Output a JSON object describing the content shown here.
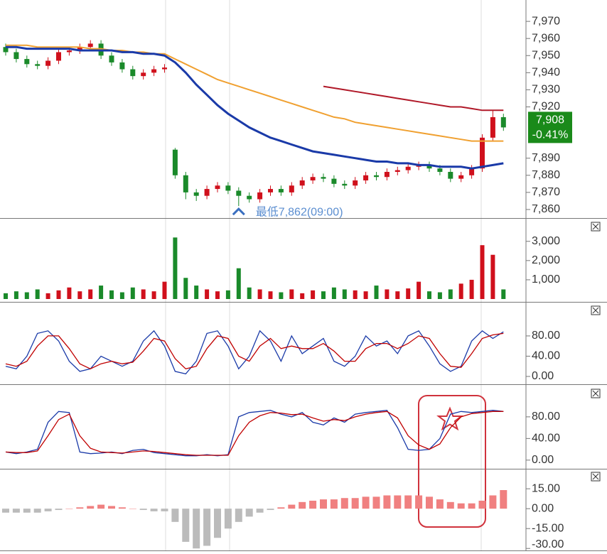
{
  "chart_data": [
    {
      "type": "candlestick",
      "open": [
        7955,
        7952,
        7948,
        7945,
        7944,
        7947,
        7952,
        7953,
        7955,
        7957,
        7950,
        7946,
        7942,
        7938,
        7940,
        7942,
        7895,
        7880,
        7870,
        7868,
        7872,
        7874,
        7871,
        7868,
        7866,
        7870,
        7872,
        7870,
        7874,
        7877,
        7879,
        7878,
        7875,
        7874,
        7877,
        7880,
        7879,
        7882,
        7883,
        7885,
        7886,
        7884,
        7882,
        7878,
        7880,
        7884,
        7902,
        7914
      ],
      "high": [
        7957,
        7954,
        7950,
        7947,
        7949,
        7954,
        7955,
        7957,
        7959,
        7959,
        7952,
        7948,
        7944,
        7942,
        7944,
        7945,
        7896,
        7882,
        7872,
        7874,
        7876,
        7876,
        7873,
        7870,
        7872,
        7874,
        7874,
        7876,
        7879,
        7881,
        7881,
        7880,
        7877,
        7879,
        7882,
        7882,
        7884,
        7885,
        7887,
        7888,
        7888,
        7886,
        7884,
        7882,
        7886,
        7904,
        7918,
        7916
      ],
      "low": [
        7950,
        7946,
        7943,
        7942,
        7942,
        7945,
        7950,
        7951,
        7953,
        7948,
        7944,
        7940,
        7936,
        7936,
        7938,
        7940,
        7878,
        7866,
        7865,
        7866,
        7870,
        7869,
        7862,
        7864,
        7864,
        7868,
        7868,
        7868,
        7872,
        7875,
        7876,
        7873,
        7872,
        7872,
        7875,
        7877,
        7877,
        7880,
        7881,
        7883,
        7882,
        7880,
        7876,
        7876,
        7878,
        7882,
        7900,
        7906
      ],
      "close": [
        7952,
        7948,
        7945,
        7944,
        7947,
        7952,
        7953,
        7955,
        7957,
        7950,
        7946,
        7942,
        7938,
        7940,
        7942,
        7943,
        7880,
        7870,
        7868,
        7872,
        7874,
        7871,
        7868,
        7866,
        7870,
        7872,
        7870,
        7874,
        7877,
        7879,
        7878,
        7875,
        7874,
        7877,
        7880,
        7879,
        7882,
        7883,
        7885,
        7886,
        7884,
        7882,
        7878,
        7880,
        7884,
        7902,
        7914,
        7908
      ],
      "up_color": "#d0101c",
      "down_color": "#1a8a2a",
      "series": [
        {
          "color": "#f0a030",
          "values": [
            7956,
            7956,
            7956,
            7955,
            7955,
            7955,
            7955,
            7955,
            7954,
            7954,
            7953,
            7953,
            7952,
            7952,
            7951,
            7951,
            7948,
            7945,
            7942,
            7939,
            7936,
            7934,
            7932,
            7930,
            7928,
            7926,
            7924,
            7922,
            7920,
            7918,
            7916,
            7914,
            7913,
            7911,
            7910,
            7909,
            7908,
            7907,
            7906,
            7905,
            7904,
            7903,
            7902,
            7901,
            7900,
            7900,
            7900,
            7900
          ]
        },
        {
          "color": "#1a3aa8",
          "values": [
            7955,
            7955,
            7954,
            7954,
            7954,
            7954,
            7954,
            7953,
            7953,
            7953,
            7953,
            7952,
            7952,
            7951,
            7951,
            7950,
            7946,
            7940,
            7933,
            7927,
            7921,
            7916,
            7912,
            7908,
            7905,
            7902,
            7900,
            7898,
            7896,
            7894,
            7893,
            7892,
            7891,
            7890,
            7889,
            7888,
            7888,
            7887,
            7887,
            7886,
            7886,
            7885,
            7885,
            7885,
            7884,
            7885,
            7886,
            7887
          ]
        },
        {
          "color": "#b01828",
          "values": [
            null,
            null,
            null,
            null,
            null,
            null,
            null,
            null,
            null,
            null,
            null,
            null,
            null,
            null,
            null,
            null,
            null,
            null,
            null,
            null,
            null,
            null,
            null,
            null,
            null,
            null,
            null,
            null,
            null,
            null,
            7932,
            7931,
            7930,
            7929,
            7928,
            7927,
            7926,
            7925,
            7924,
            7923,
            7922,
            7921,
            7920,
            7920,
            7919,
            7918,
            7918,
            7918
          ]
        }
      ],
      "ylim": [
        7855,
        7982.5
      ],
      "yticks": [
        {
          "value": 7970,
          "label": "7,970"
        },
        {
          "value": 7960,
          "label": "7,960"
        },
        {
          "value": 7950,
          "label": "7,950"
        },
        {
          "value": 7940,
          "label": "7,940"
        },
        {
          "value": 7930,
          "label": "7,930"
        },
        {
          "value": 7920,
          "label": "7,920"
        },
        {
          "value": 7890,
          "label": "7,890"
        },
        {
          "value": 7880,
          "label": "7,880"
        },
        {
          "value": 7870,
          "label": "7,870"
        },
        {
          "value": 7860,
          "label": "7,860"
        }
      ],
      "low_annotation": "最低7,862(09:00)",
      "low_index": 22,
      "last_price_label": "7,908",
      "change_label": "-0.41%",
      "tag_color": "#1a8a1a"
    },
    {
      "type": "bar",
      "values": [
        300,
        400,
        350,
        500,
        300,
        450,
        600,
        400,
        500,
        700,
        450,
        350,
        600,
        500,
        400,
        900,
        3200,
        1100,
        700,
        500,
        400,
        450,
        1600,
        600,
        500,
        400,
        350,
        500,
        300,
        450,
        400,
        600,
        500,
        450,
        400,
        700,
        500,
        400,
        550,
        900,
        400,
        350,
        500,
        800,
        1000,
        2800,
        2300,
        500
      ],
      "ylim": [
        0,
        4100
      ],
      "yticks": [
        {
          "value": 1000,
          "label": "1,000"
        },
        {
          "value": 2000,
          "label": "2,000"
        },
        {
          "value": 3000,
          "label": "3,000"
        }
      ]
    },
    {
      "type": "line",
      "series": [
        {
          "color": "#1a3aa8",
          "values": [
            20,
            15,
            40,
            85,
            90,
            70,
            30,
            10,
            15,
            40,
            30,
            20,
            30,
            70,
            90,
            60,
            10,
            5,
            30,
            85,
            90,
            60,
            15,
            40,
            90,
            70,
            30,
            80,
            45,
            60,
            75,
            30,
            20,
            40,
            80,
            60,
            70,
            45,
            80,
            90,
            60,
            25,
            10,
            20,
            70,
            90,
            75,
            88
          ]
        },
        {
          "color": "#c00000",
          "values": [
            25,
            20,
            30,
            60,
            80,
            80,
            55,
            25,
            15,
            25,
            30,
            25,
            28,
            50,
            75,
            70,
            35,
            15,
            20,
            55,
            80,
            75,
            40,
            30,
            60,
            75,
            55,
            60,
            55,
            55,
            65,
            50,
            30,
            30,
            55,
            65,
            65,
            55,
            65,
            80,
            75,
            45,
            20,
            18,
            45,
            75,
            82,
            85
          ]
        }
      ],
      "ylim": [
        -14,
        143
      ],
      "yticks": [
        {
          "value": 0,
          "label": "0.00"
        },
        {
          "value": 40,
          "label": "40.00"
        },
        {
          "value": 80,
          "label": "80.00"
        }
      ]
    },
    {
      "type": "line",
      "series": [
        {
          "color": "#1a3aa8",
          "values": [
            15,
            12,
            15,
            20,
            70,
            90,
            88,
            15,
            12,
            13,
            15,
            12,
            18,
            20,
            14,
            12,
            10,
            8,
            8,
            10,
            8,
            10,
            80,
            88,
            90,
            92,
            85,
            80,
            88,
            70,
            65,
            78,
            70,
            85,
            88,
            90,
            92,
            60,
            20,
            18,
            20,
            40,
            85,
            90,
            88,
            90,
            92,
            90
          ]
        },
        {
          "color": "#c00000",
          "values": [
            15,
            14,
            14,
            17,
            45,
            75,
            85,
            45,
            22,
            15,
            14,
            13,
            15,
            17,
            16,
            14,
            12,
            10,
            9,
            9,
            9,
            9,
            45,
            70,
            82,
            88,
            87,
            84,
            85,
            78,
            72,
            75,
            73,
            80,
            85,
            88,
            90,
            78,
            45,
            28,
            20,
            30,
            60,
            80,
            86,
            88,
            90,
            90
          ]
        }
      ],
      "ylim": [
        -16,
        135
      ],
      "yticks": [
        {
          "value": 0,
          "label": "0.00"
        },
        {
          "value": 40,
          "label": "40.00"
        },
        {
          "value": 80,
          "label": "80.00"
        }
      ]
    },
    {
      "type": "histogram",
      "values": [
        -3,
        -3,
        -3,
        -3,
        -2,
        -1,
        0,
        1,
        2,
        3,
        2,
        1,
        0,
        -1,
        -2,
        -2,
        -10,
        -25,
        -30,
        -28,
        -22,
        -15,
        -10,
        -6,
        -3,
        -1,
        1,
        3,
        5,
        6,
        7,
        7,
        8,
        8,
        9,
        9,
        10,
        10,
        10,
        10,
        9,
        7,
        5,
        4,
        4,
        6,
        10,
        14
      ],
      "pos_color": "#f08080",
      "neg_color": "#bbbbbb",
      "ylim": [
        -31.5,
        29
      ],
      "yticks": [
        {
          "value": 15,
          "label": "15.00"
        },
        {
          "value": 0,
          "label": "0.00"
        },
        {
          "value": -15,
          "label": "-15.00"
        },
        {
          "value": -30,
          "label": "-30.00"
        }
      ]
    }
  ]
}
